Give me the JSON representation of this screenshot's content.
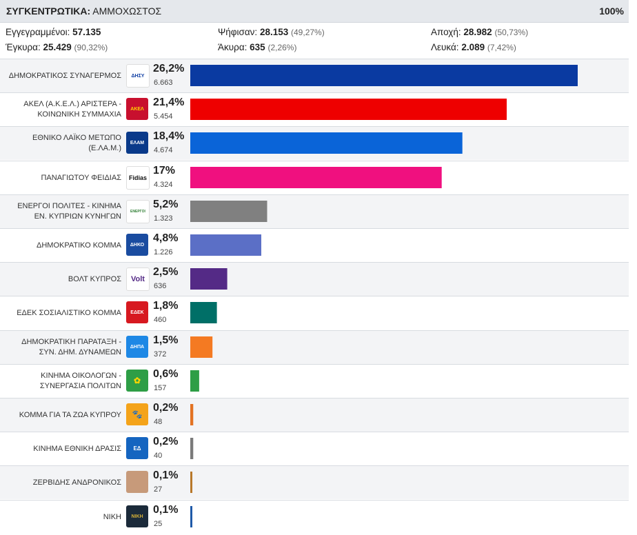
{
  "header": {
    "title_bold": "ΣΥΓΚΕΝΤΡΩΤΙΚΑ:",
    "title_rest": "ΑΜΜΟΧΩΣΤΟΣ",
    "percent": "100%"
  },
  "stats": {
    "registered_label": "Εγγεγραμμένοι:",
    "registered_value": "57.135",
    "voted_label": "Ψήφισαν:",
    "voted_value": "28.153",
    "voted_pct": "(49,27%)",
    "abstention_label": "Αποχή:",
    "abstention_value": "28.982",
    "abstention_pct": "(50,73%)",
    "valid_label": "Έγκυρα:",
    "valid_value": "25.429",
    "valid_pct": "(90,32%)",
    "invalid_label": "Άκυρα:",
    "invalid_value": "635",
    "invalid_pct": "(2,26%)",
    "blank_label": "Λευκά:",
    "blank_value": "2.089",
    "blank_pct": "(7,42%)"
  },
  "chart_data": {
    "type": "bar",
    "categories": [
      "ΔΗΜΟΚΡΑΤΙΚΟΣ ΣΥΝΑΓΕΡΜΟΣ",
      "ΑΚΕΛ (Α.Κ.Ε.Λ.) ΑΡΙΣΤΕΡΑ - ΚΟΙΝΩΝΙΚΗ ΣΥΜΜΑΧΙΑ",
      "ΕΘΝΙΚΟ ΛΑΪΚΟ ΜΕΤΩΠΟ (Ε.ΛΑ.Μ.)",
      "ΠΑΝΑΓΙΩΤΟΥ ΦΕΙΔΙΑΣ",
      "ΕΝΕΡΓΟΙ ΠΟΛΙΤΕΣ - ΚΙΝΗΜΑ ΕΝ. ΚΥΠΡΙΩΝ ΚΥΝΗΓΩΝ",
      "ΔΗΜΟΚΡΑΤΙΚΟ ΚΟΜΜΑ",
      "ΒΟΛΤ ΚΥΠΡΟΣ",
      "ΕΔΕΚ ΣΟΣΙΑΛΙΣΤΙΚΟ ΚΟΜΜΑ",
      "ΔΗΜΟΚΡΑΤΙΚΗ ΠΑΡΑΤΑΞΗ - ΣΥΝ. ΔΗΜ. ΔΥΝΑΜΕΩΝ",
      "ΚΙΝΗΜΑ ΟΙΚΟΛΟΓΩΝ - ΣΥΝΕΡΓΑΣΙΑ ΠΟΛΙΤΩΝ",
      "ΚΟΜΜΑ ΓΙΑ ΤΑ ΖΩΑ ΚΥΠΡΟΥ",
      "ΚΙΝΗΜΑ ΕΘΝΙΚΗ ΔΡΑΣΙΣ",
      "ΖΕΡΒΙΔΗΣ ΑΝΔΡΟΝΙΚΟΣ",
      "ΝΙΚΗ"
    ],
    "name_lines": [
      [
        "ΔΗΜΟΚΡΑΤΙΚΟΣ ΣΥΝΑΓΕΡΜΟΣ"
      ],
      [
        "ΑΚΕΛ (Α.Κ.Ε.Λ.) ΑΡΙΣΤΕΡΑ -",
        "ΚΟΙΝΩΝΙΚΗ ΣΥΜΜΑΧΙΑ"
      ],
      [
        "ΕΘΝΙΚΟ ΛΑΪΚΟ ΜΕΤΩΠΟ",
        "(Ε.ΛΑ.Μ.)"
      ],
      [
        "ΠΑΝΑΓΙΩΤΟΥ ΦΕΙΔΙΑΣ"
      ],
      [
        "ΕΝΕΡΓΟΙ ΠΟΛΙΤΕΣ - ΚΙΝΗΜΑ",
        "ΕΝ. ΚΥΠΡΙΩΝ ΚΥΝΗΓΩΝ"
      ],
      [
        "ΔΗΜΟΚΡΑΤΙΚΟ ΚΟΜΜΑ"
      ],
      [
        "ΒΟΛΤ ΚΥΠΡΟΣ"
      ],
      [
        "ΕΔΕΚ ΣΟΣΙΑΛΙΣΤΙΚΟ ΚΟΜΜΑ"
      ],
      [
        "ΔΗΜΟΚΡΑΤΙΚΗ ΠΑΡΑΤΑΞΗ -",
        "ΣΥΝ. ΔΗΜ. ΔΥΝΑΜΕΩΝ"
      ],
      [
        "ΚΙΝΗΜΑ ΟΙΚΟΛΟΓΩΝ -",
        "ΣΥΝΕΡΓΑΣΙΑ ΠΟΛΙΤΩΝ"
      ],
      [
        "ΚΟΜΜΑ ΓΙΑ ΤΑ ΖΩΑ ΚΥΠΡΟΥ"
      ],
      [
        "ΚΙΝΗΜΑ ΕΘΝΙΚΗ ΔΡΑΣΙΣ"
      ],
      [
        "ΖΕΡΒΙΔΗΣ ΑΝΔΡΟΝΙΚΟΣ"
      ],
      [
        "ΝΙΚΗ"
      ]
    ],
    "values": [
      26.2,
      21.4,
      18.4,
      17,
      5.2,
      4.8,
      2.5,
      1.8,
      1.5,
      0.6,
      0.2,
      0.2,
      0.1,
      0.1
    ],
    "value_labels": [
      "26,2%",
      "21,4%",
      "18,4%",
      "17%",
      "5,2%",
      "4,8%",
      "2,5%",
      "1,8%",
      "1,5%",
      "0,6%",
      "0,2%",
      "0,2%",
      "0,1%",
      "0,1%"
    ],
    "votes": [
      "6.663",
      "5.454",
      "4.674",
      "4.324",
      "1.323",
      "1.226",
      "636",
      "460",
      "372",
      "157",
      "48",
      "40",
      "27",
      "25"
    ],
    "colors": [
      "#0a3aa1",
      "#ee0000",
      "#0a64d8",
      "#f0107f",
      "#808080",
      "#5b6fc6",
      "#542a86",
      "#006f67",
      "#f47a22",
      "#2e9e46",
      "#e37222",
      "#7a7a7a",
      "#b8782a",
      "#1f5aa8"
    ],
    "logo_icons": [
      "disy-logo",
      "akel-logo",
      "elam-logo",
      "fidias-logo",
      "energoi-polites-logo",
      "diko-logo",
      "volt-logo",
      "edek-logo",
      "dipa-logo",
      "oikologoi-logo",
      "zoa-logo",
      "ethniki-drasis-logo",
      "zervidis-photo",
      "niki-logo"
    ],
    "logo_texts": [
      "ΔΗΣΥ",
      "ΑΚΕΛ",
      "ΕΛΑΜ",
      "Fidias",
      "ΕΝΕΡΓΟΙ",
      "ΔΗΚΟ",
      "Volt",
      "ΕΔΕΚ",
      "ΔΗΠΑ",
      "✿",
      "🐾",
      "ΕΔ",
      "",
      "ΝΙΚΗ"
    ],
    "xlim": [
      0,
      28
    ]
  }
}
